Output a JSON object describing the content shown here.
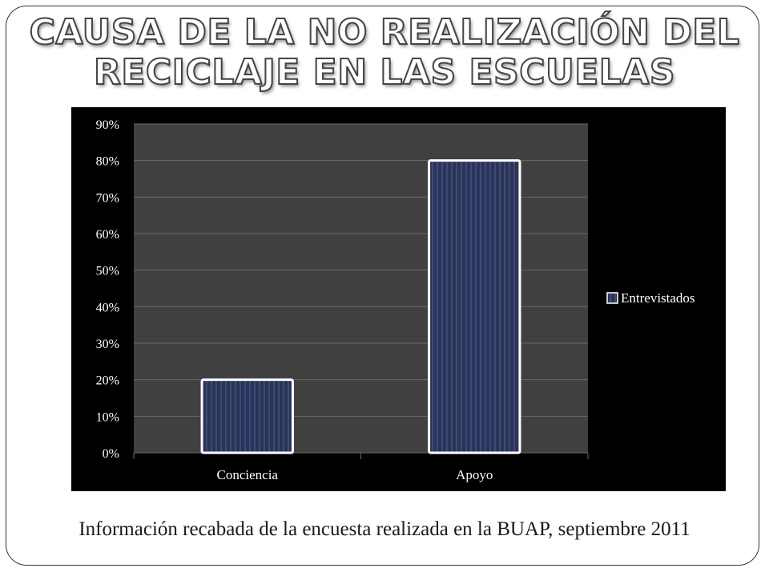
{
  "slide": {
    "title": "Causa de la no realización del reciclaje en las escuelas",
    "caption": "Información recabada  de la encuesta realizada en  la BUAP, septiembre 2011"
  },
  "chart_data": {
    "type": "bar",
    "title": "",
    "xlabel": "",
    "ylabel": "",
    "categories": [
      "Conciencia",
      "Apoyo"
    ],
    "series": [
      {
        "name": "Entrevistados",
        "values": [
          20,
          80
        ]
      }
    ],
    "ylim": [
      0,
      90
    ],
    "yticks": [
      "0%",
      "10%",
      "20%",
      "30%",
      "40%",
      "50%",
      "60%",
      "70%",
      "80%",
      "90%"
    ],
    "grid": true,
    "legend_position": "right",
    "colors": {
      "background": "#000000",
      "plot_area": "#404040",
      "bar_fill": "#2b3457",
      "bar_stripe": "#3d4a78",
      "bar_outline": "#ffffff",
      "gridline": "#6a6a6a",
      "text": "#ffffff"
    }
  }
}
